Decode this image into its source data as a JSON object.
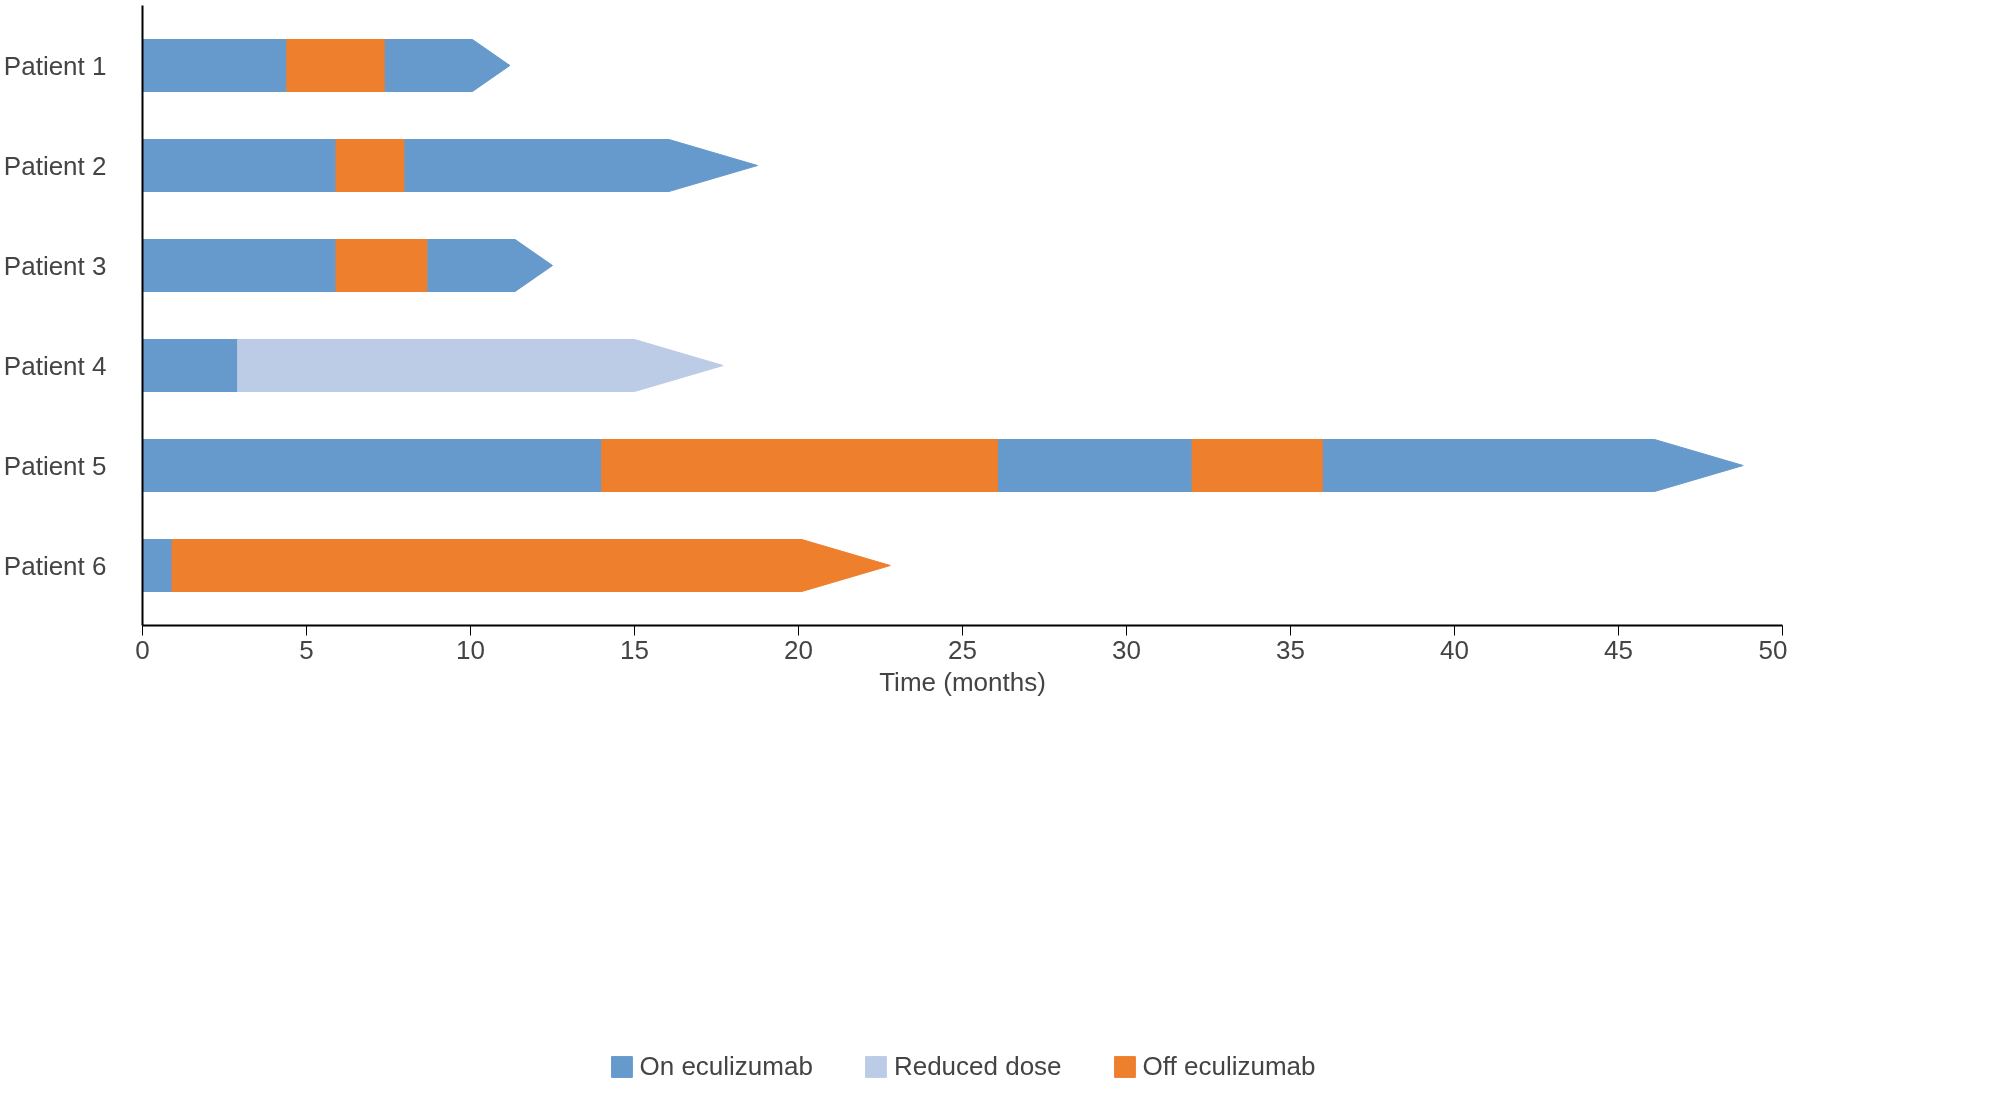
{
  "chart_data": {
    "type": "bar",
    "orientation": "horizontal",
    "stacked": true,
    "xlabel": "Time (months)",
    "categories": [
      "Patient 1",
      "Patient 2",
      "Patient 3",
      "Patient 4",
      "Patient 5",
      "Patient 6"
    ],
    "series": [
      {
        "name": "On eculizumab",
        "color": "#6699cc",
        "values": [
          4.4,
          5.9,
          5.9,
          2.9,
          14.0,
          0.9
        ]
      },
      {
        "name": "Reduced dose",
        "color": "#bccbe6",
        "values": [
          null,
          null,
          null,
          14.8,
          null,
          null
        ]
      },
      {
        "name": "Off eculizumab",
        "color": "#ee7f2d",
        "values": [
          3.0,
          2.1,
          2.8,
          null,
          12.1,
          21.9
        ]
      },
      {
        "color": "#6699cc",
        "values": [
          3.8,
          10.75,
          3.8,
          null,
          5.9,
          null
        ]
      },
      {
        "color": "#ee7f2d",
        "values": [
          null,
          null,
          null,
          null,
          4.0,
          null
        ]
      },
      {
        "color": "#6699cc",
        "values": [
          null,
          null,
          null,
          null,
          12.8,
          null
        ]
      }
    ],
    "xlim": [
      0,
      50
    ],
    "xticks": [
      0,
      5,
      10,
      15,
      20,
      25,
      30,
      35,
      40,
      45,
      50
    ],
    "grid": false,
    "legend": "bottom"
  }
}
